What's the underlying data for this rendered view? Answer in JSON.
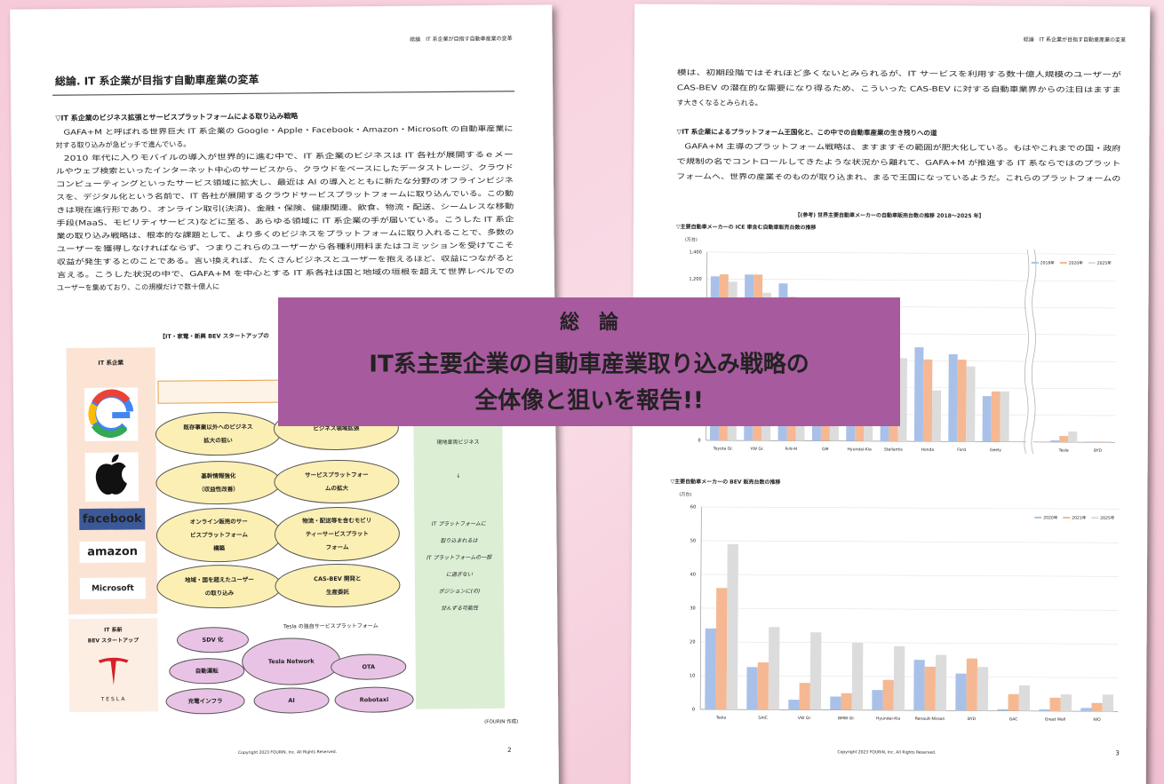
{
  "banner": {
    "heading": "総　論",
    "lines": [
      "IT系主要企業の自動車産業取り込み戦略の",
      "全体像と狙いを報告!!"
    ]
  },
  "left_page": {
    "running_header": "総論　IT 系企業が目指す自動車産業の変革",
    "title": "総論. IT 系企業が目指す自動車産業の変革",
    "section_heading": "▽IT 系企業のビジネス拡張とサービスプラットフォームによる取り込み戦略",
    "paragraphs": [
      [
        "GAFA+M と呼ばれる世界巨大 IT 系企業の Google・Apple・Facebook・Amazon・Microsoft の自動車産業に",
        "対する取り込みが急ピッチで進んでいる。"
      ],
      [
        "2010 年代に入りモバイルの導入が世界的に進む中で、IT 系企業のビジネスは IT 各社が展開するｅメー",
        "ルやウェブ検索といったインターネット中心のサービスから、クラウドをベースにしたデータストレージ、クラウド",
        "コンピューティングといったサービス領域に拡大し、最近は AI の導入とともに新たな分野のオフラインビジネ",
        "スを、デジタル化という名前で、IT 各社が展開するクラウドサービスプラットフォームに取り込んでいる。この動",
        "きは現在進行形であり、オンライン取引(決済)、金融・保険、健康関連、飲食、物流・配送、シームレスな移動",
        "手段(MaaS、モビリティサービス)などに至る、あらゆる領域に IT 系企業の手が届いている。こうした IT 系企",
        "業の取り込み戦略は、根本的な課題として、より多くのビジネスをプラットフォームに取り入れることで、多数の",
        "ユーザーを獲得しなければならず、つまりこれらのユーザーから各種利用料またはコミッションを受けてこそ",
        "収益が発生するとのことである。言い換えれば、たくさんビジネスとユーザーを抱えるほど、収益につながると",
        "言える。こうした状況の中で、GAFA+M を中心とする IT 系各社は国と地域の垣根を超えて世界レベルでの",
        "ユーザーを集めており、この規模だけで数十億人に"
      ]
    ],
    "diagram": {
      "caption": "【IT・家電・新興 BEV スタートアップの",
      "it_column_label": "IT 系企業",
      "center_label": "IT 系企業",
      "logos": [
        "facebook",
        "amazon",
        "Microsoft"
      ],
      "ellipses": [
        [
          "既存事業以外へのビジネス",
          "拡大の狙い"
        ],
        [
          "ビジネス領域拡張"
        ],
        [
          "基幹情報強化",
          "（収益性改善）"
        ],
        [
          "サービスプラットフォー",
          "ムの拡大"
        ],
        [
          "オンライン販売のサー",
          "ビスプラットフォーム",
          "構築"
        ],
        [
          "物流・配送等を含むモビリ",
          "ティーサービスプラット",
          "フォーム"
        ],
        [
          "地域・国を超えたユーザー",
          "の取り込み"
        ],
        [
          "CAS-BEV 開発と",
          "生産委託"
        ]
      ],
      "green_column": [
        "現地車両ビジネス",
        "↓"
      ],
      "green_notes": [
        "IT プラットフォームに",
        "取り込まれるは",
        "IT プラットフォームの一部",
        "に過ぎない",
        "ポジションに(の)",
        "甘んずる可能性"
      ],
      "startup_label": [
        "IT 系新",
        "BEV スタートアップ"
      ],
      "tesla_caption": "Tesla の独自サービスプラットフォーム",
      "tesla_items": [
        "SDV 化",
        "自動運転",
        "Tesla Network",
        "OTA",
        "充電インフラ",
        "AI",
        "Robotaxi"
      ],
      "tesla_logo": "TESLA",
      "source": "(FOURIN 作成)"
    },
    "copyright": "Copyright 2023 FOURIN, Inc. All Rights Reserved.",
    "page_number": "2"
  },
  "right_page": {
    "running_header": "総論　IT 系企業が目指す自動車産業の変革",
    "paragraph_1": [
      "模は、初期段階ではそれほど多くないとみられるが、IT サービスを利用する数十億人規模のユーザーが",
      "CAS-BEV の潜在的な需要になり得るため、こういった CAS-BEV に対する自動車業界からの注目はますま",
      "す大きくなるとみられる。"
    ],
    "section_heading": "▽IT 系企業によるプラットフォーム王国化と、この中での自動車産業の生き残りへの道",
    "paragraph_2": [
      "GAFA+M 主導のプラットフォーム戦略は、ますますその範囲が肥大化している。もはやこれまでの国・政府",
      "で規制の名でコントロールしてきたような状況から離れて、GAFA+M が推進する IT 系ならではのプラット",
      "フォームへ、世界の産業そのものが取り込まれ、まるで王国になっているようだ。これらのプラットフォームの"
    ],
    "charts_caption": "【(参考) 世界主要自動車メーカーの自動車販売台数の推移 2018～2025 年】",
    "copyright": "Copyright 2023 FOURIN, Inc. All Rights Reserved.",
    "page_number": "3"
  },
  "chart_data": [
    {
      "type": "bar",
      "title": "▽主要自動車メーカーの ICE 車含む自動車販売台数の推移",
      "unit": "(万台)",
      "categories": [
        "Toyota Gr.",
        "VW Gr.",
        "R-N-M",
        "GM",
        "Hyundai-Kia",
        "Stellantis",
        "Honda",
        "Ford",
        "Geely",
        "Tesla",
        "BYD"
      ],
      "series": [
        {
          "name": "2018年",
          "color": "#a9c1e8",
          "values": [
            1220,
            1235,
            1170,
            840,
            740,
            640,
            700,
            650,
            340,
            13,
            5
          ]
        },
        {
          "name": "2020年",
          "color": "#f5b893",
          "values": [
            1235,
            1235,
            1070,
            770,
            700,
            600,
            610,
            610,
            375,
            46,
            6
          ]
        },
        {
          "name": "2025年",
          "color": "#dcdcdc",
          "values": [
            1180,
            1100,
            1000,
            720,
            720,
            620,
            380,
            560,
            375,
            80,
            8
          ]
        }
      ],
      "ylim": [
        0,
        1400
      ],
      "yticks": [
        0,
        200,
        400,
        600,
        800,
        {
          "value": 1000,
          "label": "1,000"
        },
        {
          "value": 1200,
          "label": "1,200"
        },
        {
          "value": 1400,
          "label": "1,400"
        }
      ],
      "grid": true,
      "legend": "upper right",
      "axis_break_after": 8
    },
    {
      "type": "bar",
      "title": "▽主要自動車メーカーの BEV 販売台数の推移",
      "unit": "(万台)",
      "categories": [
        "Tesla",
        "SAIC",
        "VW Gr.",
        "BMW Gr.",
        "Hyundai-Kia",
        "Renault-Nissan",
        "BYD",
        "GAC",
        "Great Wall",
        "NIO"
      ],
      "series": [
        {
          "name": "2020年",
          "color": "#a9c1e8",
          "values": [
            24,
            12.6,
            3,
            4,
            6,
            15,
            11,
            0.5,
            0.5,
            1
          ]
        },
        {
          "name": "2021年",
          "color": "#f5b893",
          "values": [
            36,
            14,
            8,
            5,
            9,
            13,
            15.5,
            5,
            4,
            2.5
          ]
        },
        {
          "name": "2025年",
          "color": "#dcdcdc",
          "values": [
            49,
            24.5,
            23,
            20,
            19,
            16.5,
            13,
            7.6,
            5,
            5
          ]
        }
      ],
      "ylim": [
        0,
        60
      ],
      "yticks": [
        0,
        10,
        20,
        30,
        40,
        50,
        60
      ],
      "grid": true,
      "legend": "upper right"
    }
  ]
}
